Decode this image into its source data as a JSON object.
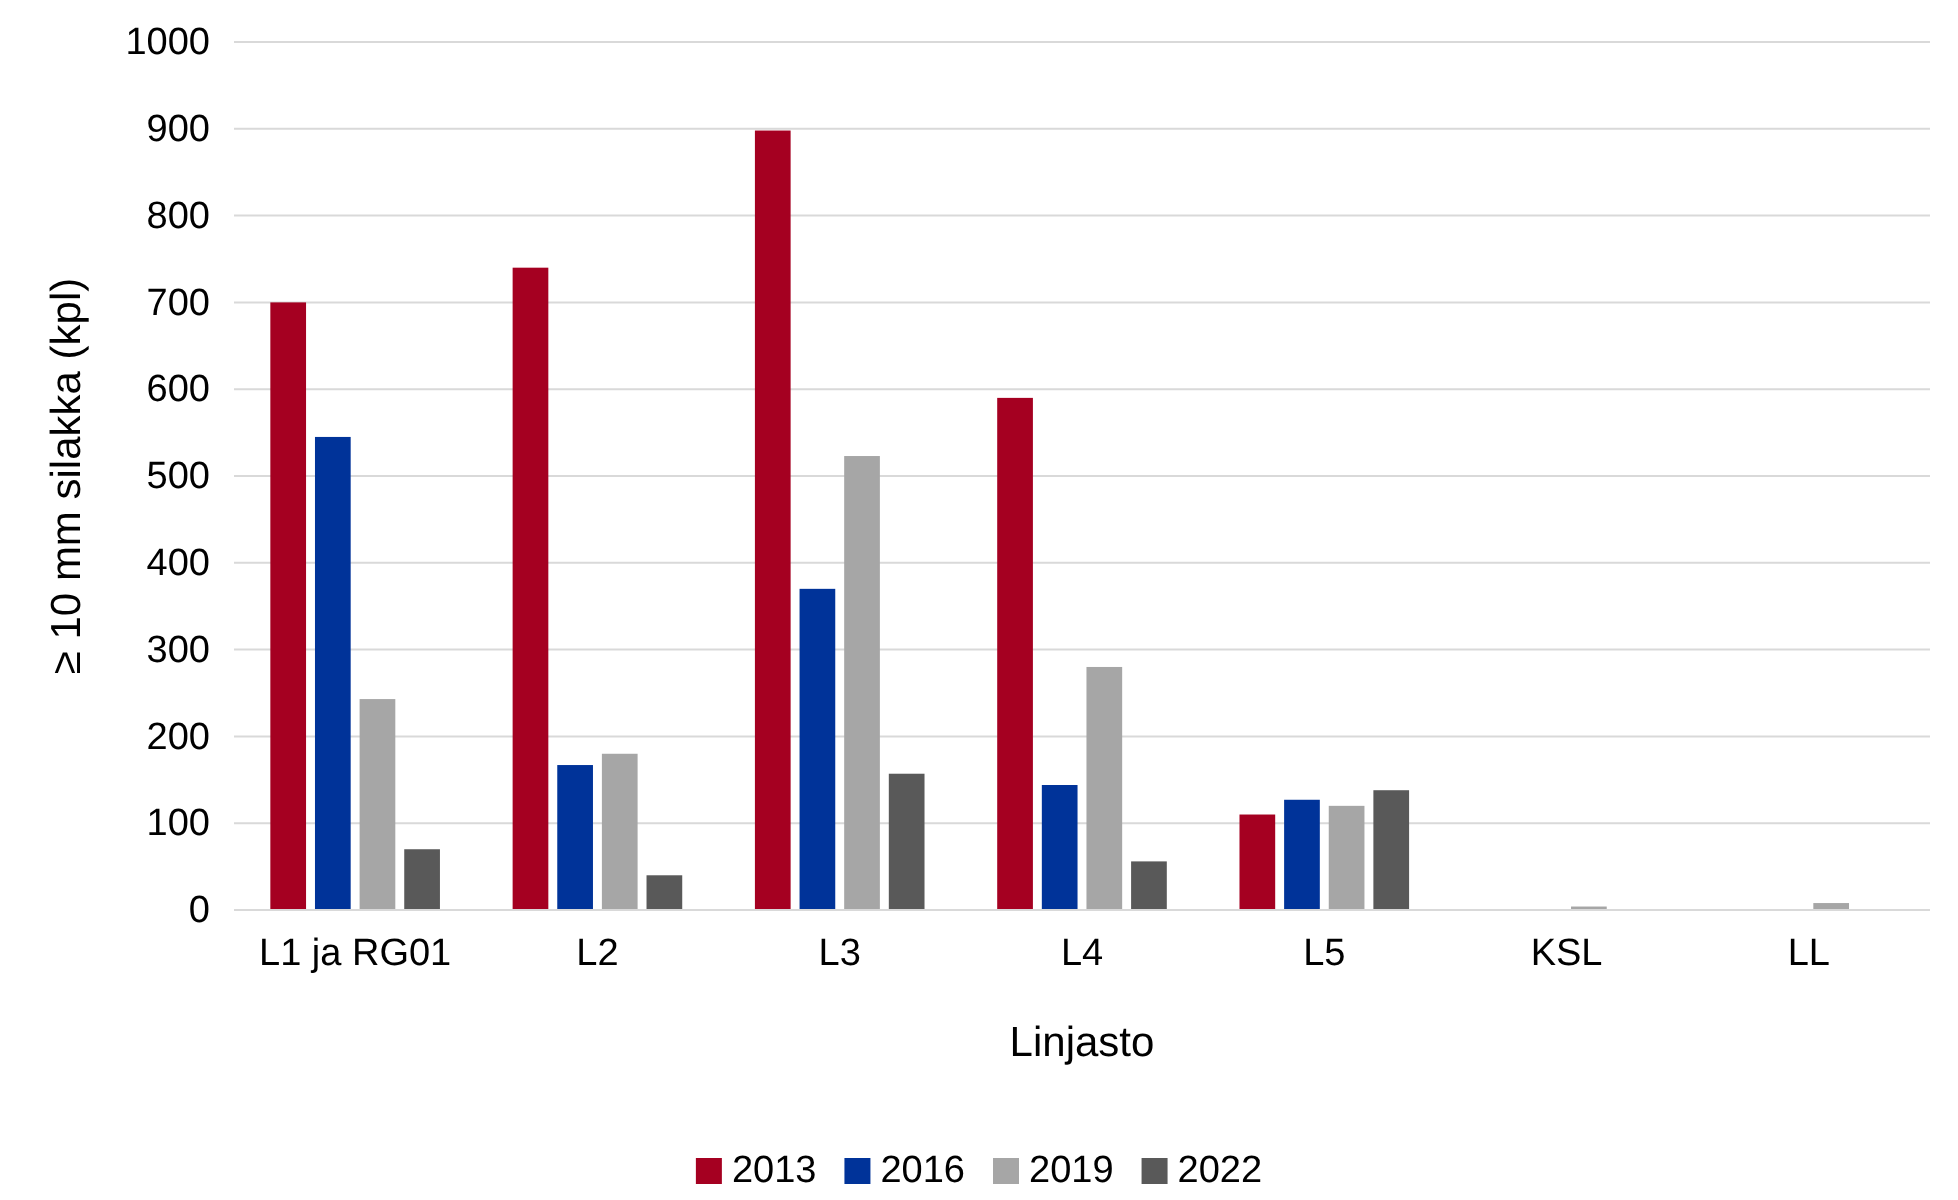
{
  "chart_data": {
    "type": "bar",
    "xlabel": "Linjasto",
    "ylabel": "≥ 10 mm silakka (kpl)",
    "categories": [
      "L1 ja RG01",
      "L2",
      "L3",
      "L4",
      "L5",
      "KSL",
      "LL"
    ],
    "series": [
      {
        "name": "2013",
        "color": "#a50021",
        "values": [
          700,
          740,
          898,
          590,
          110,
          0,
          0
        ]
      },
      {
        "name": "2016",
        "color": "#003399",
        "values": [
          545,
          167,
          370,
          144,
          127,
          0,
          0
        ]
      },
      {
        "name": "2019",
        "color": "#a6a6a6",
        "values": [
          243,
          180,
          523,
          280,
          120,
          4,
          8
        ]
      },
      {
        "name": "2022",
        "color": "#595959",
        "values": [
          70,
          40,
          157,
          56,
          138,
          0,
          0
        ]
      }
    ],
    "ylim": [
      0,
      1000
    ],
    "yticks": [
      0,
      100,
      200,
      300,
      400,
      500,
      600,
      700,
      800,
      900,
      1000
    ],
    "grid": "y",
    "legend": "bottom"
  }
}
